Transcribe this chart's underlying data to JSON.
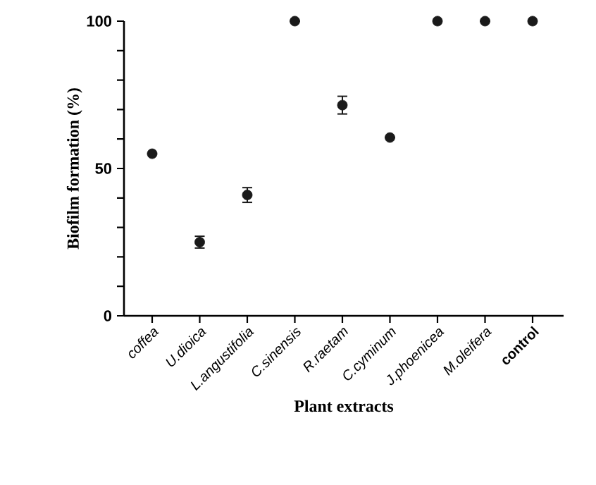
{
  "chart_data": {
    "type": "scatter",
    "xlabel": "Plant extracts",
    "ylabel": "Biofilm formation (%)",
    "categories": [
      "*coffea*",
      "*U.dioica*",
      "*L.angustifolia*",
      "*C.sinensis*",
      "*R.raetam*",
      "*C.cyminum*",
      "*J.phoenicea*",
      "*M.oleifera*",
      "**control**"
    ],
    "values": [
      55,
      25,
      41,
      100,
      71.5,
      60.5,
      100,
      100,
      100
    ],
    "errors": [
      null,
      2,
      2.5,
      null,
      3,
      null,
      null,
      null,
      null
    ],
    "color": "#1a1a1a",
    "marker": "circle",
    "grid": false,
    "ylim": [
      0,
      100
    ],
    "yticks": [
      0,
      {
        "value": 10,
        "label": null
      },
      {
        "value": 20,
        "label": null
      },
      {
        "value": 30,
        "label": null
      },
      {
        "value": 40,
        "label": null
      },
      50,
      {
        "value": 60,
        "label": null
      },
      {
        "value": 70,
        "label": null
      },
      {
        "value": 80,
        "label": null
      },
      {
        "value": 90,
        "label": null
      },
      100
    ]
  }
}
